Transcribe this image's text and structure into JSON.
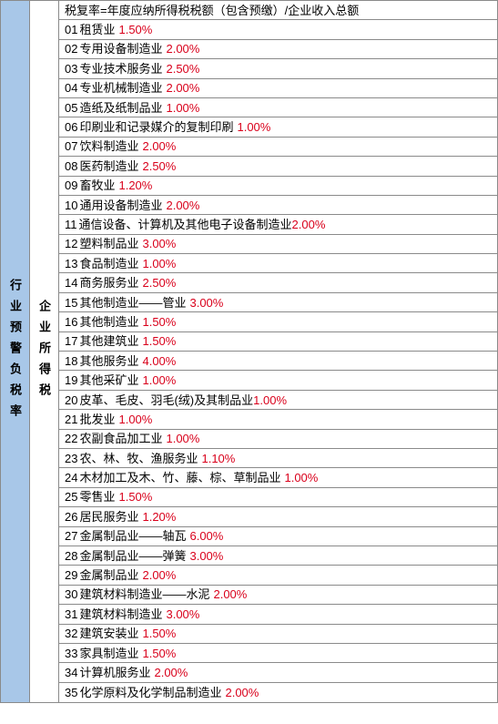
{
  "left_label": "行业预警负税率",
  "mid_label": "企业所得税",
  "formula": "税复率=年度应纳所得税税额（包含预缴）/企业收入总额",
  "rows": [
    {
      "num": "01",
      "name": "租赁业",
      "rate": "1.50%"
    },
    {
      "num": "02",
      "name": "专用设备制造业",
      "rate": "2.00%"
    },
    {
      "num": "03",
      "name": "专业技术服务业",
      "rate": "2.50%"
    },
    {
      "num": "04",
      "name": "专业机械制造业",
      "rate": "2.00%"
    },
    {
      "num": "05",
      "name": "造纸及纸制品业",
      "rate": "1.00%"
    },
    {
      "num": "06",
      "name": "印刷业和记录媒介的复制印刷",
      "rate": "1.00%"
    },
    {
      "num": "07",
      "name": "饮料制造业",
      "rate": "2.00%"
    },
    {
      "num": "08",
      "name": "医药制造业",
      "rate": "2.50%"
    },
    {
      "num": "09",
      "name": "畜牧业",
      "rate": "1.20%"
    },
    {
      "num": "10",
      "name": "通用设备制造业",
      "rate": "2.00%"
    },
    {
      "num": "11",
      "name": "通信设备、计算机及其他电子设备制造业",
      "rate": "2.00%",
      "nospace": true
    },
    {
      "num": "12",
      "name": "塑料制品业",
      "rate": "3.00%"
    },
    {
      "num": "13",
      "name": "食品制造业",
      "rate": "1.00%"
    },
    {
      "num": "14",
      "name": "商务服务业",
      "rate": "2.50%"
    },
    {
      "num": "15",
      "name": "其他制造业——管业",
      "rate": "3.00%"
    },
    {
      "num": "16",
      "name": "其他制造业",
      "rate": "1.50%"
    },
    {
      "num": "17",
      "name": "其他建筑业",
      "rate": "1.50%"
    },
    {
      "num": "18",
      "name": "其他服务业",
      "rate": "4.00%"
    },
    {
      "num": "19",
      "name": "其他采矿业",
      "rate": "1.00%"
    },
    {
      "num": "20",
      "name": "皮革、毛皮、羽毛(绒)及其制品业",
      "rate": "1.00%",
      "nospace": true
    },
    {
      "num": "21",
      "name": "批发业",
      "rate": "1.00%"
    },
    {
      "num": "22",
      "name": "农副食品加工业",
      "rate": "1.00%"
    },
    {
      "num": "23",
      "name": "农、林、牧、渔服务业",
      "rate": "1.10%"
    },
    {
      "num": "24",
      "name": "木材加工及木、竹、藤、棕、草制品业",
      "rate": "1.00%"
    },
    {
      "num": "25",
      "name": "零售业",
      "rate": "1.50%"
    },
    {
      "num": "26",
      "name": "居民服务业",
      "rate": "1.20%"
    },
    {
      "num": "27",
      "name": "金属制品业——轴瓦",
      "rate": "6.00%"
    },
    {
      "num": "28",
      "name": "金属制品业——弹簧",
      "rate": "3.00%"
    },
    {
      "num": "29",
      "name": "金属制品业",
      "rate": "2.00%",
      "nonumspace": true
    },
    {
      "num": "30",
      "name": "建筑材料制造业——水泥",
      "rate": "2.00%"
    },
    {
      "num": "31",
      "name": "建筑材料制造业",
      "rate": "3.00%"
    },
    {
      "num": "32",
      "name": "建筑安装业",
      "rate": "1.50%"
    },
    {
      "num": "33",
      "name": "家具制造业",
      "rate": "1.50%"
    },
    {
      "num": "34",
      "name": "计算机服务业",
      "rate": "2.00%"
    },
    {
      "num": "35",
      "name": "化学原料及化学制品制造业",
      "rate": "2.00%"
    }
  ],
  "colors": {
    "left_bg": "#a8c7e8",
    "border": "#8a8a8a",
    "rate_color": "#d9001b"
  }
}
